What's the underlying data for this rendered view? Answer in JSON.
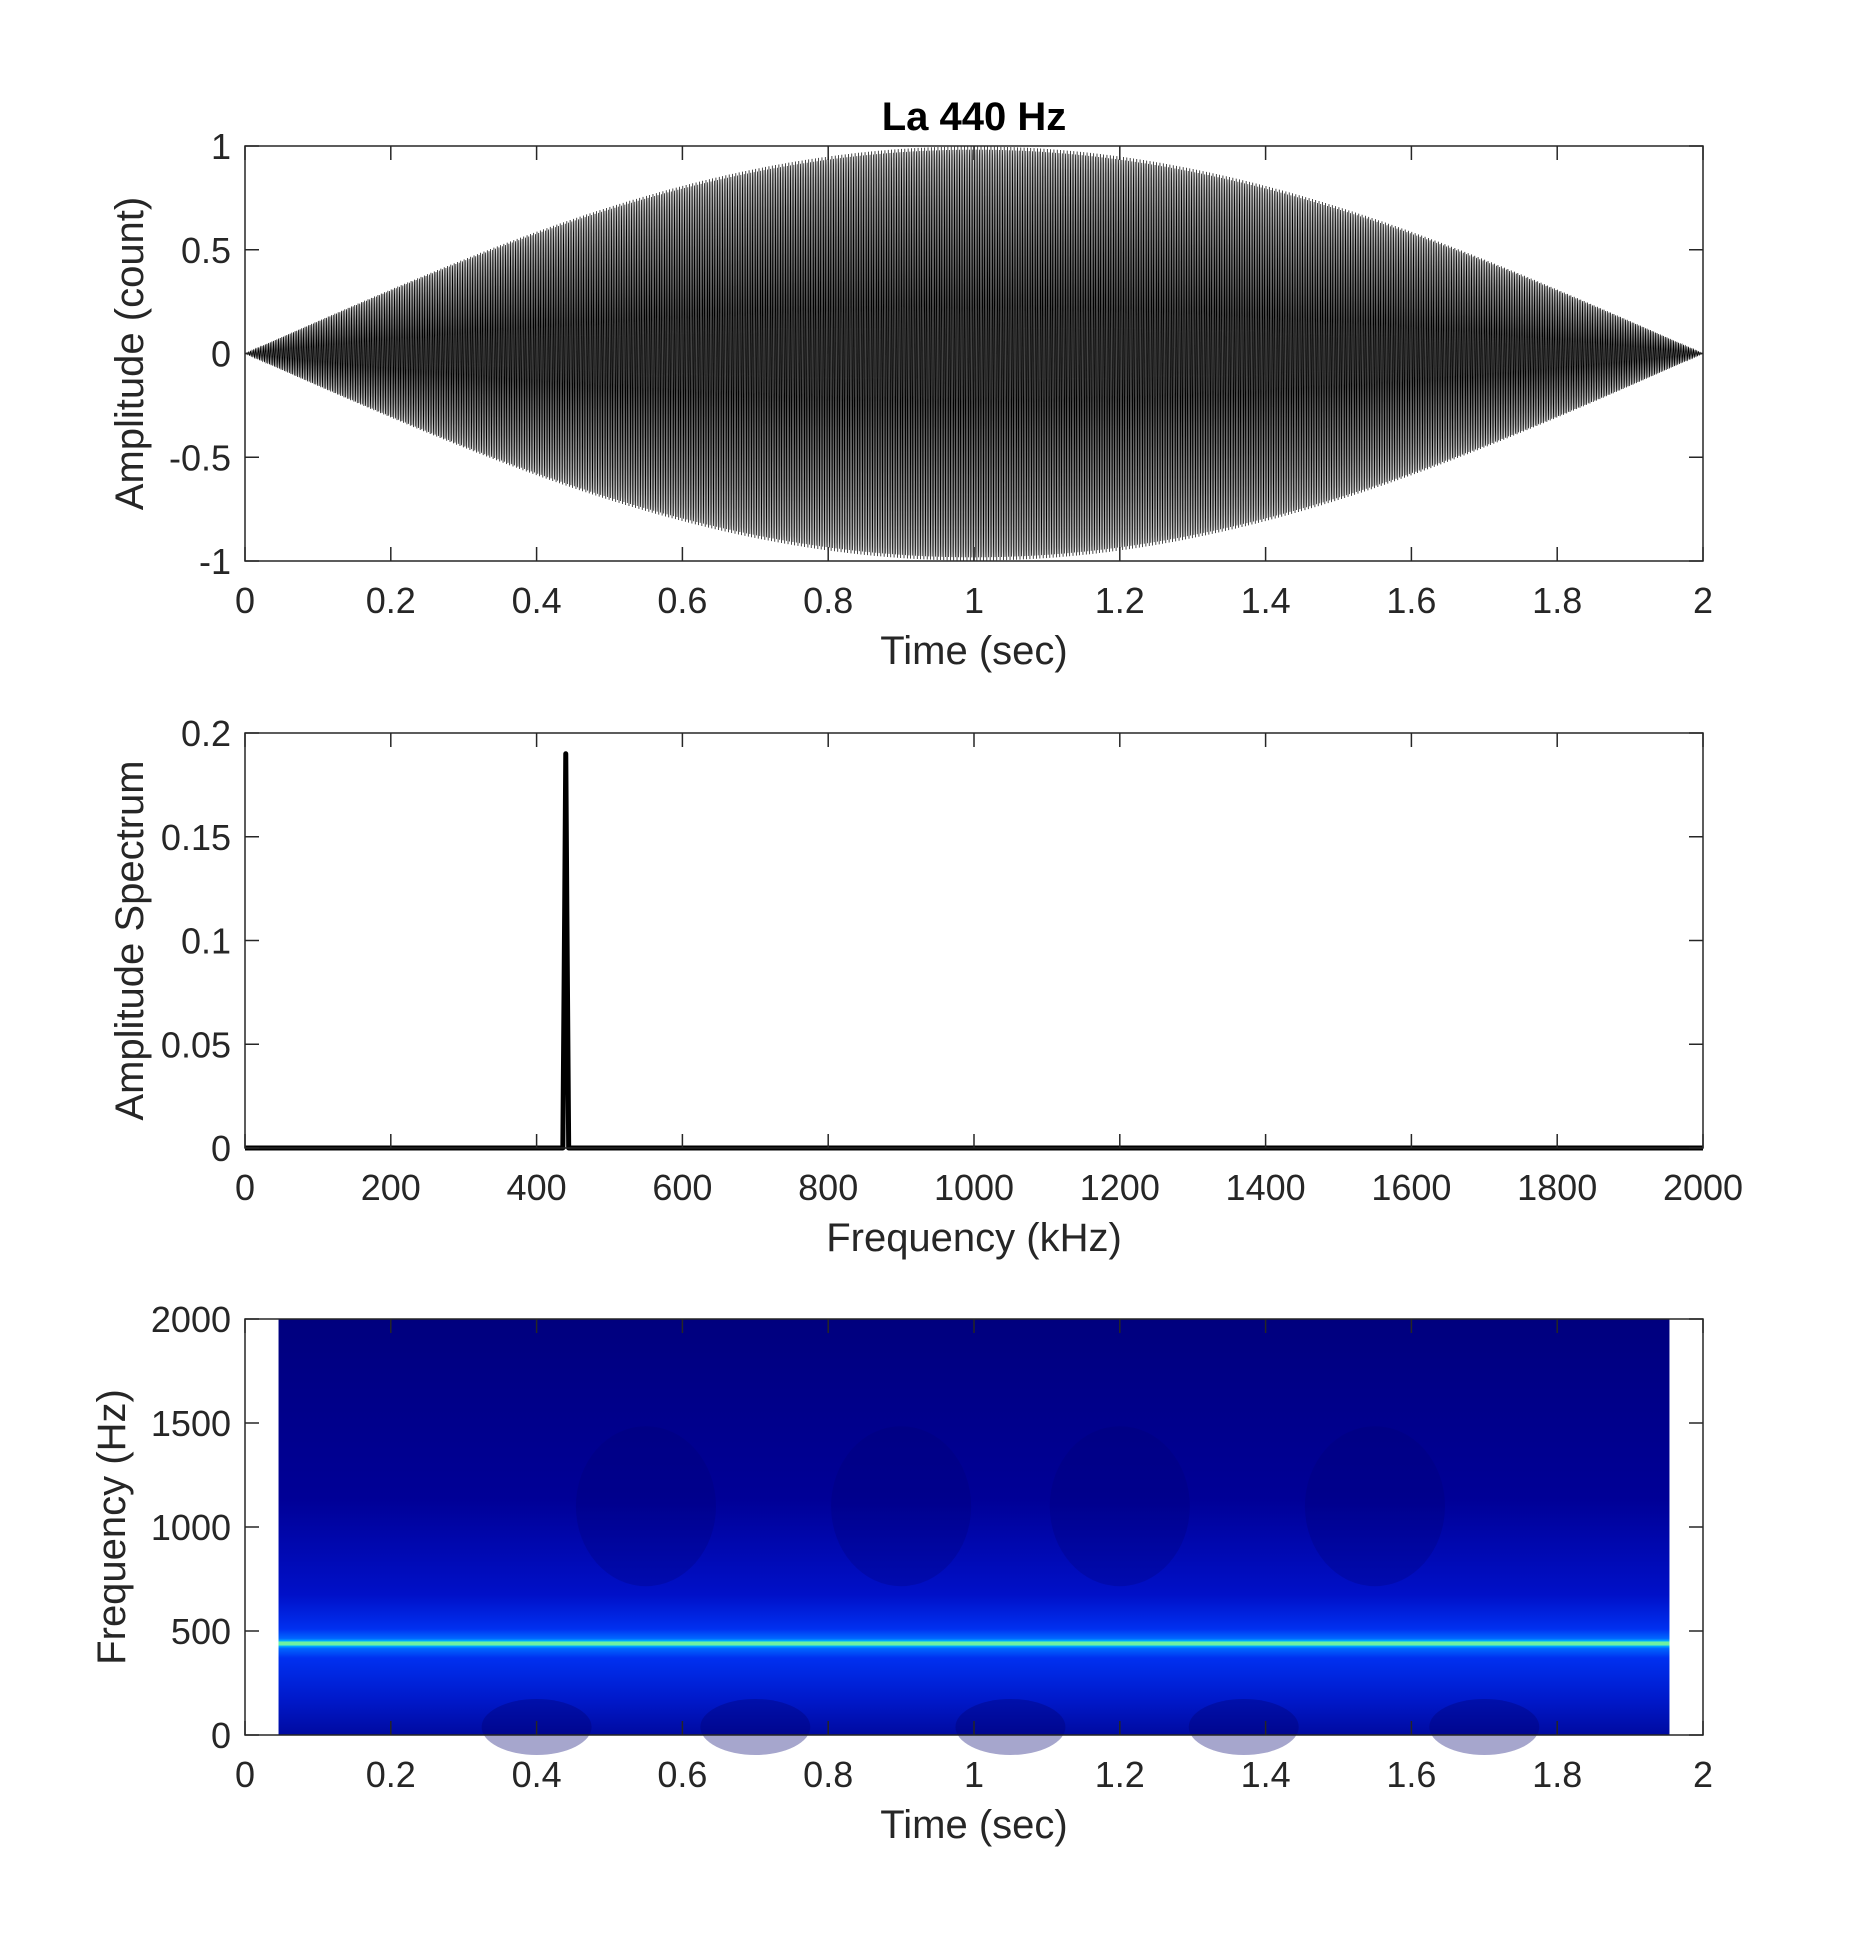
{
  "chart_data": [
    {
      "type": "line",
      "title": "La 440 Hz",
      "xlabel": "Time (sec)",
      "ylabel": "Amplitude (count)",
      "xlim": [
        0,
        2
      ],
      "ylim": [
        -1,
        1
      ],
      "xticks": [
        "0",
        "0.2",
        "0.4",
        "0.6",
        "0.8",
        "1",
        "1.2",
        "1.4",
        "1.6",
        "1.8",
        "2"
      ],
      "yticks": [
        "-1",
        "-0.5",
        "0",
        "0.5",
        "1"
      ],
      "series": [
        {
          "signal": "sin(2*pi*440*t) * sin(pi*t/2)",
          "frequency_hz": 440,
          "envelope": "half-sine window over 0 to 2 sec",
          "color": "#000000"
        }
      ]
    },
    {
      "type": "line",
      "title": "",
      "xlabel": "Frequency (kHz)",
      "ylabel": "Amplitude Spectrum",
      "xlim": [
        0,
        2000
      ],
      "ylim": [
        0,
        0.2
      ],
      "xticks": [
        "0",
        "200",
        "400",
        "600",
        "800",
        "1000",
        "1200",
        "1400",
        "1600",
        "1800",
        "2000"
      ],
      "yticks": [
        "0",
        "0.05",
        "0.1",
        "0.15",
        "0.2"
      ],
      "series": [
        {
          "peak_x": 440,
          "peak_y": 0.19,
          "baseline": 0,
          "color": "#000000"
        }
      ]
    },
    {
      "type": "heatmap",
      "title": "",
      "xlabel": "Time (sec)",
      "ylabel": "Frequency (Hz)",
      "xlim": [
        0,
        2
      ],
      "ylim": [
        0,
        2000
      ],
      "xticks": [
        "0",
        "0.2",
        "0.4",
        "0.6",
        "0.8",
        "1",
        "1.2",
        "1.4",
        "1.6",
        "1.8",
        "2"
      ],
      "yticks": [
        "0",
        "500",
        "1000",
        "1500",
        "2000"
      ],
      "data_extent_x": [
        0.046,
        1.954
      ],
      "band_frequency_hz": 440,
      "colormap": "jet",
      "background_color": "#00007e",
      "band_color": "#6ff0a0"
    }
  ]
}
